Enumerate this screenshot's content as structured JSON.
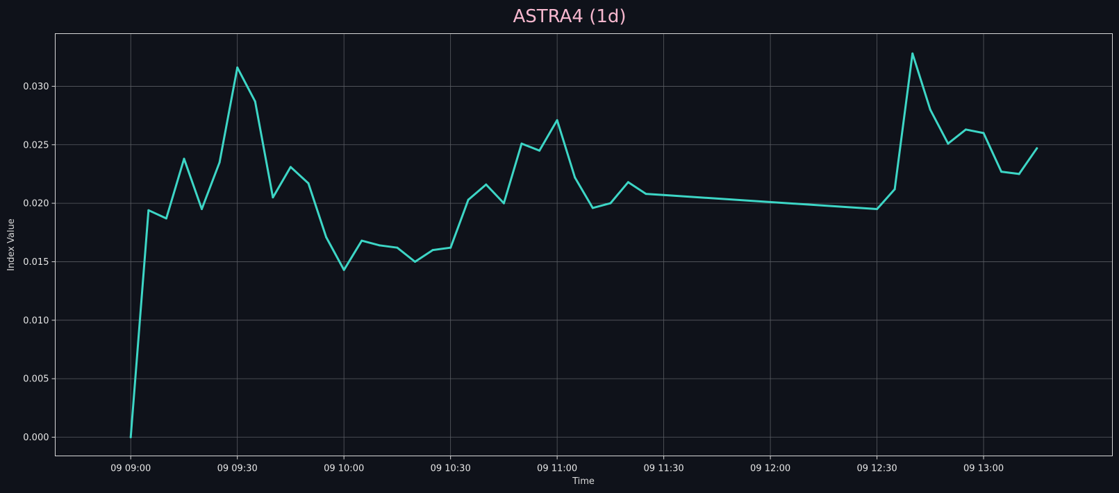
{
  "chart_data": {
    "type": "line",
    "title": "ASTRA4 (1d)",
    "xlabel": "Time",
    "ylabel": "Index Value",
    "grid": true,
    "legend": "none",
    "colors": {
      "background": "#0f121a",
      "line": "#3dd6c6",
      "title": "#f7b8cf",
      "text": "#e6e6e6"
    },
    "xlim": [
      "09:00",
      "13:15"
    ],
    "ylim": [
      -0.0016,
      0.0345
    ],
    "x_ticks": [
      "09 09:00",
      "09 09:30",
      "09 10:00",
      "09 10:30",
      "09 11:00",
      "09 11:30",
      "09 12:00",
      "09 12:30",
      "09 13:00"
    ],
    "y_ticks": [
      "0.000",
      "0.005",
      "0.010",
      "0.015",
      "0.020",
      "0.025",
      "0.030"
    ],
    "series": [
      {
        "points": [
          [
            "09:00",
            0.0
          ],
          [
            "09:05",
            0.0194
          ],
          [
            "09:10",
            0.0187
          ],
          [
            "09:15",
            0.0238
          ],
          [
            "09:20",
            0.0195
          ],
          [
            "09:25",
            0.0235
          ],
          [
            "09:30",
            0.0316
          ],
          [
            "09:35",
            0.0287
          ],
          [
            "09:40",
            0.0205
          ],
          [
            "09:45",
            0.0231
          ],
          [
            "09:50",
            0.0217
          ],
          [
            "09:55",
            0.0171
          ],
          [
            "10:00",
            0.0143
          ],
          [
            "10:05",
            0.0168
          ],
          [
            "10:10",
            0.0164
          ],
          [
            "10:15",
            0.0162
          ],
          [
            "10:20",
            0.015
          ],
          [
            "10:25",
            0.016
          ],
          [
            "10:30",
            0.0162
          ],
          [
            "10:35",
            0.0203
          ],
          [
            "10:40",
            0.0216
          ],
          [
            "10:45",
            0.02
          ],
          [
            "10:50",
            0.0251
          ],
          [
            "10:55",
            0.0245
          ],
          [
            "11:00",
            0.0271
          ],
          [
            "11:05",
            0.0222
          ],
          [
            "11:10",
            0.0196
          ],
          [
            "11:15",
            0.02
          ],
          [
            "11:20",
            0.0218
          ],
          [
            "11:25",
            0.0208
          ],
          [
            "11:30",
            0.0207
          ],
          [
            "12:30",
            0.0195
          ],
          [
            "12:35",
            0.0212
          ],
          [
            "12:40",
            0.0328
          ],
          [
            "12:45",
            0.028
          ],
          [
            "12:50",
            0.0251
          ],
          [
            "12:55",
            0.0263
          ],
          [
            "13:00",
            0.026
          ],
          [
            "13:05",
            0.0227
          ],
          [
            "13:10",
            0.0225
          ],
          [
            "13:15",
            0.0247
          ]
        ]
      }
    ]
  }
}
